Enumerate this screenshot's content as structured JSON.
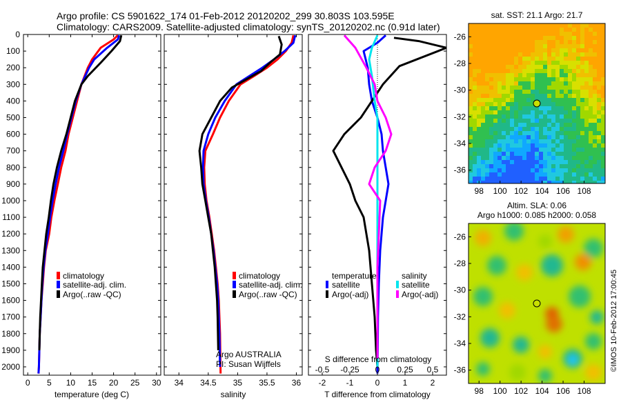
{
  "header": {
    "line1": "Argo profile: CS 5901622_174 01-Feb-2012 20120202_299 30.803S 103.595E",
    "line2": "Climatology: CARS2009. Satellite-adjusted climatology: synTS_20120202.nc (0.91d later)"
  },
  "colors": {
    "climatology": "#ff0000",
    "satellite": "#0000ff",
    "argo": "#000000",
    "sal_satellite": "#00e5ee",
    "sal_argo": "#ff00ff"
  },
  "chart_data": [
    {
      "type": "line",
      "id": "temperature",
      "xlabel": "temperature (deg C)",
      "ylabel": "",
      "xlim": [
        -1,
        31
      ],
      "ylim": [
        2050,
        0
      ],
      "xticks": [
        "0",
        "5",
        "10",
        "15",
        "20",
        "25",
        "30"
      ],
      "yticks": [
        "0",
        "100",
        "200",
        "300",
        "400",
        "500",
        "600",
        "700",
        "800",
        "900",
        "1000",
        "1100",
        "1200",
        "1300",
        "1400",
        "1500",
        "1600",
        "1700",
        "1800",
        "1900",
        "2000"
      ],
      "legend": [
        "climatology",
        "satellite-adj. clim.",
        "Argo(..raw -QC)"
      ],
      "series": [
        {
          "name": "climatology",
          "color": "#ff0000",
          "x": [
            21,
            20,
            17,
            15,
            14,
            12.5,
            11.5,
            10.5,
            9.5,
            8.8,
            7.8,
            7,
            6.2,
            5.5,
            5,
            4.2,
            3.8,
            3.5,
            3.2,
            3,
            2.8,
            2.7,
            2.6,
            2.5
          ],
          "y": [
            5,
            30,
            80,
            150,
            200,
            300,
            400,
            500,
            600,
            700,
            800,
            900,
            1000,
            1100,
            1200,
            1300,
            1400,
            1500,
            1600,
            1700,
            1800,
            1900,
            2000,
            2040
          ]
        },
        {
          "name": "satellite-adj. clim.",
          "color": "#0000ff",
          "x": [
            21.3,
            21,
            18.5,
            15.5,
            14.3,
            12.5,
            11.2,
            10.2,
            9.2,
            8.3,
            7.3,
            6.5,
            5.8,
            5.2,
            4.7,
            4.1,
            3.7,
            3.4,
            3.2,
            3,
            2.8,
            2.7,
            2.6,
            2.5
          ],
          "y": [
            5,
            30,
            80,
            150,
            200,
            300,
            400,
            500,
            600,
            700,
            800,
            900,
            1000,
            1100,
            1200,
            1300,
            1400,
            1500,
            1600,
            1700,
            1800,
            1900,
            2000,
            2040
          ]
        },
        {
          "name": "Argo(..raw -QC)",
          "color": "#000000",
          "x": [
            21.8,
            21.5,
            19.5,
            17,
            14,
            12.5,
            11,
            10,
            9,
            7.8,
            6.8,
            6,
            5.4,
            4.9,
            4.3,
            3.9,
            3.5,
            3.3,
            3.1,
            2.9,
            2.8,
            2.7
          ],
          "y": [
            5,
            40,
            100,
            170,
            250,
            300,
            400,
            500,
            600,
            700,
            800,
            900,
            1000,
            1100,
            1200,
            1300,
            1400,
            1500,
            1600,
            1700,
            1800,
            1900
          ]
        }
      ]
    },
    {
      "type": "line",
      "id": "salinity",
      "xlabel": "salinity",
      "xlim": [
        33.75,
        36.1
      ],
      "ylim": [
        2050,
        0
      ],
      "xticks": [
        "34",
        "34.5",
        "35",
        "35.5",
        "36"
      ],
      "legend": [
        "climatology",
        "satellite-adj. clim.",
        "Argo(..raw -QC)"
      ],
      "annotations": [
        "Argo AUSTRALIA",
        "PI: Susan Wijffels"
      ],
      "series": [
        {
          "name": "climatology",
          "color": "#ff0000",
          "x": [
            35.95,
            35.92,
            35.82,
            35.68,
            35.5,
            35.28,
            35.05,
            34.85,
            34.7,
            34.58,
            34.45,
            34.43,
            34.44,
            34.47,
            34.52,
            34.56,
            34.6,
            34.63,
            34.66,
            34.68,
            34.69,
            34.7,
            34.71
          ],
          "y": [
            5,
            50,
            100,
            150,
            200,
            250,
            300,
            400,
            500,
            600,
            700,
            800,
            900,
            1000,
            1100,
            1200,
            1300,
            1400,
            1500,
            1600,
            1700,
            1800,
            2040
          ]
        },
        {
          "name": "satellite-adj. clim.",
          "color": "#0000ff",
          "x": [
            35.98,
            35.95,
            35.8,
            35.62,
            35.42,
            35.2,
            34.98,
            34.78,
            34.62,
            34.5,
            34.42,
            34.41,
            34.42,
            34.46,
            34.51,
            34.55,
            34.59,
            34.62,
            34.65,
            34.67,
            34.68,
            34.69,
            34.7
          ],
          "y": [
            5,
            50,
            100,
            150,
            200,
            250,
            300,
            400,
            500,
            600,
            700,
            800,
            900,
            1000,
            1100,
            1200,
            1300,
            1400,
            1500,
            1600,
            1700,
            1800,
            2000
          ]
        },
        {
          "name": "Argo(..raw -QC)",
          "color": "#000000",
          "x": [
            35.7,
            35.75,
            35.72,
            35.55,
            35.4,
            35.15,
            34.9,
            34.7,
            34.55,
            34.4,
            34.35,
            34.38,
            34.4,
            34.45,
            34.5,
            34.55,
            34.58,
            34.61,
            34.63,
            34.65,
            34.66,
            34.67
          ],
          "y": [
            10,
            60,
            120,
            170,
            220,
            270,
            320,
            400,
            500,
            600,
            700,
            800,
            900,
            1000,
            1100,
            1200,
            1300,
            1400,
            1500,
            1600,
            1700,
            1900
          ]
        }
      ]
    },
    {
      "type": "line",
      "id": "differences",
      "xlabel_bottom": "T difference from climatology",
      "xlabel_top": "S difference from climatology",
      "xlim": [
        -2.5,
        2.5
      ],
      "ylim": [
        2050,
        0
      ],
      "xticks_bottom": [
        "-2",
        "-1",
        "0",
        "1",
        "2"
      ],
      "xticks_top": [
        "-0.5",
        "-0.25",
        "0",
        "0.25",
        "0.5"
      ],
      "legend_headers": [
        "temperature",
        "salinity"
      ],
      "legend": [
        "satellite",
        "Argo(-adj)",
        "satellite",
        "Argo(-adj)"
      ],
      "series": [
        {
          "name": "satellite",
          "group": "temperature",
          "color": "#0000ff",
          "x": [
            0.3,
            0,
            -0.5,
            -0.35,
            -0.3,
            -0.2,
            0,
            0.15,
            0.2,
            0.3,
            0.35,
            0.4,
            0.3,
            0.2,
            0.1,
            0.05,
            0.02,
            0.01,
            0
          ],
          "y": [
            5,
            50,
            100,
            200,
            300,
            400,
            500,
            600,
            700,
            800,
            850,
            900,
            1000,
            1100,
            1300,
            1500,
            1700,
            1900,
            2040
          ]
        },
        {
          "name": "Argo(-adj)",
          "group": "temperature",
          "color": "#000000",
          "x": [
            0.6,
            1.5,
            2.5,
            0.8,
            0.2,
            -0.2,
            -0.6,
            -1.2,
            -1.6,
            -1.3,
            -1,
            -0.8,
            -0.5,
            -0.3,
            -0.2,
            -0.1,
            -0.05,
            0
          ],
          "y": [
            20,
            40,
            80,
            190,
            300,
            400,
            500,
            600,
            700,
            800,
            900,
            1000,
            1100,
            1300,
            1500,
            1700,
            1900,
            2000
          ]
        },
        {
          "name": "satellite",
          "group": "salinity",
          "color": "#00e5ee",
          "x": [
            0,
            -0.2,
            -0.3,
            -0.2,
            -0.1,
            0,
            0,
            0,
            0,
            0,
            0,
            0,
            0,
            0,
            0
          ],
          "y": [
            5,
            80,
            150,
            250,
            400,
            500,
            600,
            700,
            800,
            900,
            1100,
            1300,
            1500,
            1800,
            2000
          ]
        },
        {
          "name": "Argo(-adj)",
          "group": "salinity",
          "color": "#ff00ff",
          "x": [
            -1.2,
            -0.8,
            -0.4,
            -0.1,
            0,
            0.3,
            0.5,
            0.3,
            -0.1,
            -0.3,
            0.1,
            0.05,
            0,
            0,
            0
          ],
          "y": [
            5,
            80,
            200,
            300,
            400,
            500,
            600,
            700,
            800,
            900,
            1000,
            1200,
            1400,
            1700,
            1950
          ]
        }
      ]
    },
    {
      "type": "heatmap",
      "id": "sst_map",
      "title": "sat. SST: 21.1  Argo: 21.7",
      "xticks": [
        "98",
        "100",
        "102",
        "104",
        "106",
        "108"
      ],
      "yticks": [
        "-26",
        "-28",
        "-30",
        "-32",
        "-34",
        "-36"
      ],
      "xlim": [
        97,
        110
      ],
      "ylim": [
        -37,
        -25
      ],
      "marker": {
        "lon": 103.6,
        "lat": -30.8
      }
    },
    {
      "type": "heatmap",
      "id": "sla_map",
      "title": "Altim. SLA: 0.06",
      "subtitle": "Argo h1000: 0.085 h2000: 0.058",
      "xticks": [
        "98",
        "100",
        "102",
        "104",
        "106",
        "108"
      ],
      "yticks": [
        "-26",
        "-28",
        "-30",
        "-32",
        "-34",
        "-36"
      ],
      "xlim": [
        97,
        110
      ],
      "ylim": [
        -37,
        -25
      ],
      "marker": {
        "lon": 103.6,
        "lat": -30.8
      }
    }
  ],
  "credit": "©IMOS 10-Feb-2012 17:00:45"
}
